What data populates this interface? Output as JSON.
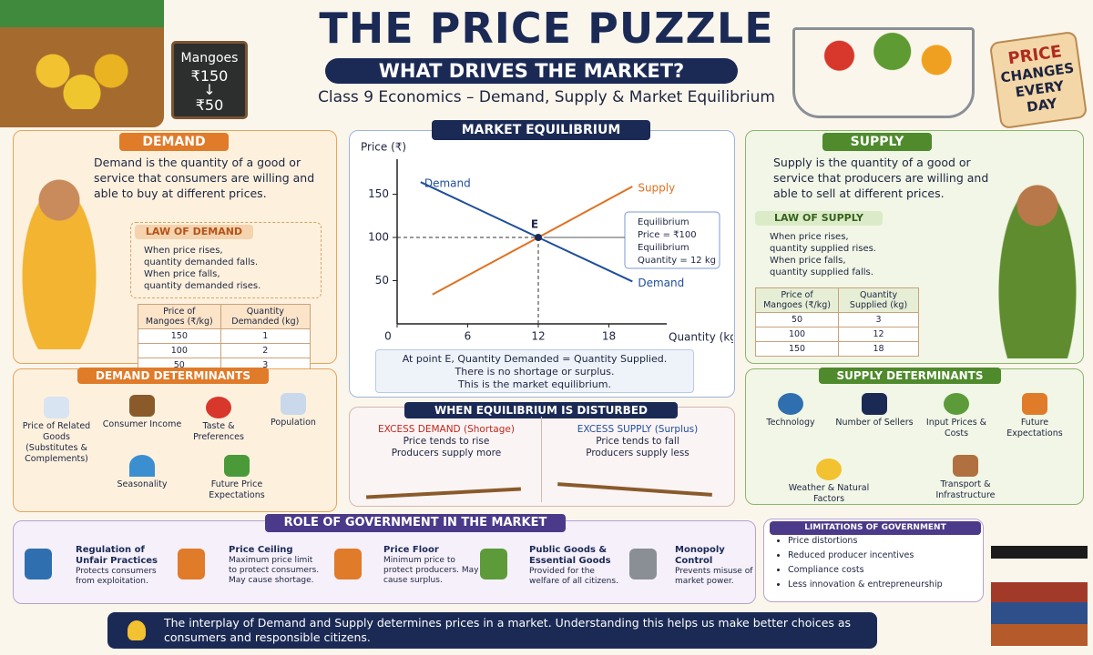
{
  "header": {
    "title": "THE PRICE PUZZLE",
    "subtitle": "WHAT DRIVES THE MARKET?",
    "tagline": "Class 9 Economics – Demand, Supply & Market Equilibrium",
    "sign_item": "Mangoes",
    "sign_old_price": "₹150",
    "sign_new_price": "₹50",
    "tag_lines": [
      "PRICE",
      "CHANGES",
      "EVERY DAY"
    ]
  },
  "demand": {
    "heading": "DEMAND",
    "definition": "Demand is the quantity of a good or service that consumers are willing and able to buy at different prices.",
    "law_heading": "LAW OF DEMAND",
    "law_lines": [
      "When price rises,",
      "quantity demanded falls.",
      "When price falls,",
      "quantity demanded rises."
    ],
    "table": {
      "header": [
        "Price of Mangoes (₹/kg)",
        "Quantity Demanded (kg)"
      ],
      "rows": [
        [
          "150",
          "1"
        ],
        [
          "100",
          "2"
        ],
        [
          "50",
          "3"
        ]
      ]
    }
  },
  "demand_determinants": {
    "heading": "DEMAND DETERMINANTS",
    "items": [
      "Price of Related Goods (Substitutes & Complements)",
      "Consumer Income",
      "Taste & Preferences",
      "Population",
      "Seasonality",
      "Future Price Expectations"
    ]
  },
  "chart_data": {
    "type": "line",
    "title": "MARKET EQUILIBRIUM",
    "y_label": "Price (₹)",
    "x_label": "Quantity (kg)",
    "xlim": [
      0,
      24
    ],
    "ylim": [
      0,
      180
    ],
    "xticks": [
      0,
      6,
      12,
      18
    ],
    "yticks": [
      50,
      100,
      150
    ],
    "series": [
      {
        "name": "Demand",
        "color": "#1f4e9c",
        "x": [
          2,
          12,
          20
        ],
        "values": [
          164,
          100,
          49
        ]
      },
      {
        "name": "Supply",
        "color": "#e07020",
        "x": [
          3,
          12,
          20
        ],
        "values": [
          34,
          100,
          159
        ]
      }
    ],
    "equilibrium": {
      "label": "E",
      "x": 12,
      "y": 100
    },
    "callout": [
      "Equilibrium",
      "Price = ₹100",
      "Equilibrium",
      "Quantity = 12 kg"
    ],
    "note": [
      "At point E, Quantity Demanded = Quantity Supplied.",
      "There is no shortage or surplus.",
      "This is the market equilibrium."
    ]
  },
  "disturbed": {
    "heading": "WHEN EQUILIBRIUM IS DISTURBED",
    "excess_demand": {
      "title": "EXCESS DEMAND",
      "qualifier": "(Shortage)",
      "lines": [
        "Price tends to rise",
        "Producers supply more"
      ]
    },
    "excess_supply": {
      "title": "EXCESS SUPPLY",
      "qualifier": "(Surplus)",
      "lines": [
        "Price tends to fall",
        "Producers supply less"
      ]
    }
  },
  "supply": {
    "heading": "SUPPLY",
    "definition": "Supply is the quantity of a good or service that producers are willing and able to sell at different prices.",
    "law_heading": "LAW OF SUPPLY",
    "law_lines": [
      "When price rises,",
      "quantity supplied rises.",
      "When price falls,",
      "quantity supplied falls."
    ],
    "table": {
      "header": [
        "Price of Mangoes (₹/kg)",
        "Quantity Supplied (kg)"
      ],
      "rows": [
        [
          "50",
          "3"
        ],
        [
          "100",
          "12"
        ],
        [
          "150",
          "18"
        ]
      ]
    }
  },
  "supply_determinants": {
    "heading": "SUPPLY DETERMINANTS",
    "items": [
      "Technology",
      "Number of Sellers",
      "Input Prices & Costs",
      "Future Expectations",
      "Weather & Natural Factors",
      "Transport & Infrastructure"
    ]
  },
  "government": {
    "heading": "ROLE OF GOVERNMENT IN THE MARKET",
    "items": [
      {
        "title": "Regulation of Unfair Practices",
        "text": "Protects consumers from exploitation."
      },
      {
        "title": "Price Ceiling",
        "text": "Maximum price limit to protect consumers. May cause shortage."
      },
      {
        "title": "Price Floor",
        "text": "Minimum price to protect producers. May cause surplus."
      },
      {
        "title": "Public Goods & Essential Goods",
        "text": "Provided for the welfare of all citizens."
      },
      {
        "title": "Monopoly Control",
        "text": "Prevents misuse of market power."
      }
    ]
  },
  "limitations": {
    "heading": "LIMITATIONS OF GOVERNMENT INTERVENTION",
    "items": [
      "Price distortions",
      "Reduced producer incentives",
      "Compliance costs",
      "Less innovation & entrepreneurship"
    ]
  },
  "footer": {
    "text": "The interplay of Demand and Supply determines prices in a market. Understanding this helps us make better choices as consumers and responsible citizens."
  }
}
